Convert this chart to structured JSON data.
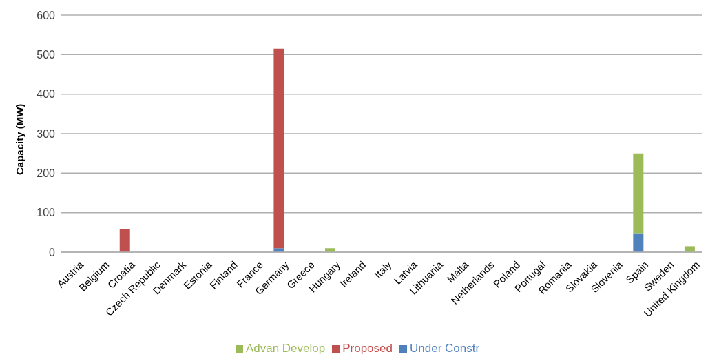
{
  "chart_data": {
    "type": "bar",
    "stacked": true,
    "ylabel": "Capacity (MW)",
    "categories": [
      "Austria",
      "Belgium",
      "Croatia",
      "Czech Republic",
      "Denmark",
      "Estonia",
      "Finland",
      "France",
      "Germany",
      "Greece",
      "Hungary",
      "Ireland",
      "Italy",
      "Latvia",
      "Lithuania",
      "Malta",
      "Netherlands",
      "Poland",
      "Portugal",
      "Romania",
      "Slovakia",
      "Slovenia",
      "Spain",
      "Sweden",
      "United Kingdom"
    ],
    "series": [
      {
        "name": "Under Constr",
        "color": "#4f81bd",
        "values": [
          0,
          0,
          0,
          0,
          0,
          0,
          0,
          0,
          10,
          0,
          0,
          0,
          0,
          0,
          0,
          0,
          0,
          0,
          0,
          0,
          0,
          0,
          48,
          0,
          0
        ]
      },
      {
        "name": "Advan Develop",
        "color": "#9bbb59",
        "values": [
          0,
          0,
          0,
          0,
          0,
          0,
          0,
          0,
          0,
          0,
          10,
          0,
          0,
          0,
          0,
          0,
          0,
          0,
          0,
          0,
          0,
          0,
          202,
          0,
          15
        ]
      },
      {
        "name": "Proposed",
        "color": "#c0504d",
        "values": [
          0,
          0,
          58,
          0,
          0,
          0,
          0,
          0,
          505,
          0,
          0,
          0,
          0,
          0,
          0,
          0,
          0,
          0,
          0,
          0,
          0,
          0,
          0,
          0,
          0
        ]
      }
    ],
    "ylim": [
      0,
      600
    ],
    "yticks": [
      0,
      100,
      200,
      300,
      400,
      500,
      600
    ],
    "grid": "y",
    "legend": "bottom"
  }
}
